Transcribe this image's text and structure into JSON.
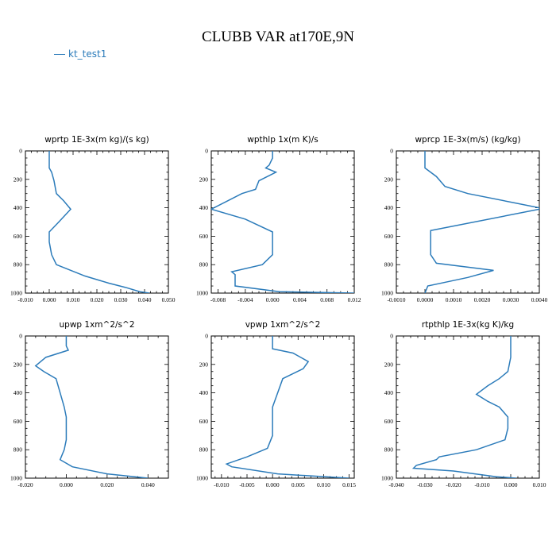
{
  "title": "CLUBB VAR at170E,9N",
  "legend": {
    "label": "kt_test1",
    "color": "#2b7bba"
  },
  "chart_data": [
    {
      "type": "line",
      "title": "wprtp  1E-3x(m kg)/(s kg)",
      "xlim": [
        -0.01,
        0.05
      ],
      "xticks": [
        "-0.010",
        "0.000",
        "0.010",
        "0.020",
        "0.030",
        "0.040",
        "0.050"
      ],
      "ylim": [
        0,
        1000
      ],
      "yticks": [
        "0",
        "200",
        "400",
        "600",
        "800",
        "1000"
      ],
      "y_inverted": true,
      "series": [
        {
          "x": [
            0.0,
            0.0,
            0.001,
            0.002,
            0.003,
            0.006,
            0.009,
            0.004,
            0.0,
            0.0,
            0.001,
            0.003,
            0.015,
            0.025,
            0.032,
            0.038,
            0.042
          ],
          "y": [
            0,
            120,
            150,
            210,
            300,
            350,
            410,
            500,
            570,
            640,
            730,
            800,
            880,
            930,
            960,
            990,
            1000
          ]
        }
      ]
    },
    {
      "type": "line",
      "title": "wpthlp  1x(m K)/s",
      "xlim": [
        -0.009,
        0.012
      ],
      "xticks": [
        "-0.008",
        "-0.004",
        "0.000",
        "0.004",
        "0.008",
        "0.012"
      ],
      "ylim": [
        0,
        1000
      ],
      "yticks": [
        "0",
        "200",
        "400",
        "600",
        "800",
        "1000"
      ],
      "y_inverted": true,
      "series": [
        {
          "x": [
            0.0,
            0.0,
            -0.0005,
            -0.001,
            0.0005,
            -0.002,
            -0.0025,
            -0.0045,
            -0.009,
            -0.004,
            0.0,
            0.0,
            -0.0015,
            -0.006,
            -0.0055,
            -0.0055,
            -0.0055,
            0.001,
            0.012
          ],
          "y": [
            0,
            50,
            100,
            120,
            150,
            210,
            270,
            300,
            410,
            480,
            570,
            730,
            800,
            850,
            870,
            910,
            950,
            990,
            1000
          ]
        }
      ]
    },
    {
      "type": "line",
      "title": "wprcp  1E-3x(m/s) (kg/kg)",
      "xlim": [
        -0.001,
        0.004
      ],
      "xticks": [
        "-0.0010",
        "0.0000",
        "0.0010",
        "0.0020",
        "0.0030",
        "0.0040"
      ],
      "ylim": [
        0,
        1000
      ],
      "yticks": [
        "0",
        "200",
        "400",
        "600",
        "800",
        "1000"
      ],
      "y_inverted": true,
      "series": [
        {
          "x": [
            0.0,
            0.0,
            0.0004,
            0.0007,
            0.0015,
            0.004,
            0.004,
            0.0002,
            0.0002,
            0.0002,
            0.0004,
            0.0024,
            0.0015,
            0.0008,
            0.0001,
            0.0
          ],
          "y": [
            0,
            120,
            180,
            250,
            300,
            400,
            410,
            560,
            640,
            730,
            790,
            840,
            890,
            920,
            950,
            1000
          ]
        }
      ]
    },
    {
      "type": "line",
      "title": "upwp  1xm^2/s^2",
      "xlim": [
        -0.02,
        0.05
      ],
      "xticks": [
        "-0.020",
        "0.000",
        "0.020",
        "0.040"
      ],
      "ylim": [
        0,
        1000
      ],
      "yticks": [
        "0",
        "200",
        "400",
        "600",
        "800",
        "1000"
      ],
      "y_inverted": true,
      "series": [
        {
          "x": [
            0.0,
            0.0,
            0.001,
            -0.01,
            -0.015,
            -0.011,
            -0.005,
            -0.003,
            -0.001,
            0.0,
            0.0,
            -0.001,
            -0.003,
            0.003,
            0.02,
            0.04
          ],
          "y": [
            0,
            70,
            100,
            150,
            210,
            250,
            300,
            400,
            500,
            570,
            730,
            800,
            870,
            920,
            970,
            1000
          ]
        }
      ]
    },
    {
      "type": "line",
      "title": "vpwp  1xm^2/s^2",
      "xlim": [
        -0.012,
        0.016
      ],
      "xticks": [
        "-0.010",
        "-0.005",
        "0.000",
        "0.005",
        "0.010",
        "0.015"
      ],
      "ylim": [
        0,
        1000
      ],
      "yticks": [
        "0",
        "200",
        "400",
        "600",
        "800",
        "1000"
      ],
      "y_inverted": true,
      "series": [
        {
          "x": [
            0.0,
            0.0,
            0.004,
            0.007,
            0.006,
            0.002,
            0.001,
            0.0,
            0.0,
            0.0,
            -0.001,
            -0.005,
            -0.009,
            -0.008,
            0.001,
            0.015
          ],
          "y": [
            0,
            90,
            120,
            180,
            230,
            300,
            400,
            500,
            600,
            700,
            790,
            850,
            900,
            920,
            970,
            1000
          ]
        }
      ]
    },
    {
      "type": "line",
      "title": "rtpthlp  1E-3x(kg K)/kg",
      "xlim": [
        -0.04,
        0.01
      ],
      "xticks": [
        "-0.040",
        "-0.030",
        "-0.020",
        "-0.010",
        "0.000",
        "0.010"
      ],
      "ylim": [
        0,
        1000
      ],
      "yticks": [
        "0",
        "200",
        "400",
        "600",
        "800",
        "1000"
      ],
      "y_inverted": true,
      "series": [
        {
          "x": [
            0.0,
            0.0,
            -0.001,
            -0.004,
            -0.008,
            -0.012,
            -0.008,
            -0.004,
            -0.001,
            -0.001,
            -0.002,
            -0.012,
            -0.025,
            -0.026,
            -0.033,
            -0.034,
            -0.02,
            -0.005,
            0.002
          ],
          "y": [
            0,
            150,
            250,
            300,
            350,
            410,
            460,
            500,
            570,
            650,
            730,
            800,
            850,
            870,
            910,
            930,
            950,
            990,
            1000
          ]
        }
      ]
    }
  ]
}
